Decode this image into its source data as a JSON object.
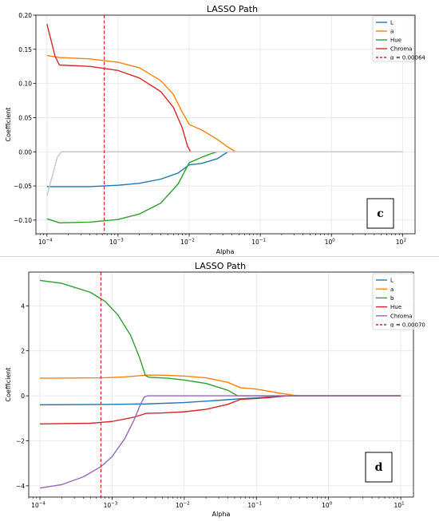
{
  "chart_data": [
    {
      "type": "line",
      "title": "LASSO Path",
      "xlabel": "Alpha",
      "ylabel": "Coefficient",
      "xscale": "log",
      "xlim": [
        7e-05,
        15
      ],
      "ylim": [
        -0.12,
        0.2
      ],
      "xticks": [
        {
          "value": 0.0001,
          "base": "10",
          "exp": "−4"
        },
        {
          "value": 0.001,
          "base": "10",
          "exp": "−3"
        },
        {
          "value": 0.01,
          "base": "10",
          "exp": "−2"
        },
        {
          "value": 0.1,
          "base": "10",
          "exp": "−1"
        },
        {
          "value": 1,
          "base": "10",
          "exp": "0"
        },
        {
          "value": 10,
          "base": "10",
          "exp": "1"
        }
      ],
      "yticks": [
        {
          "value": 0.2,
          "label": "0.20"
        },
        {
          "value": 0.15,
          "label": "0.15"
        },
        {
          "value": 0.1,
          "label": "0.10"
        },
        {
          "value": 0.05,
          "label": "0.05"
        },
        {
          "value": 0.0,
          "label": "0.00"
        },
        {
          "value": -0.05,
          "label": "−0.05"
        },
        {
          "value": -0.1,
          "label": "−0.10"
        }
      ],
      "grid": true,
      "legend_position": "top-right",
      "panel_label": "c",
      "series": [
        {
          "name": "L",
          "color": "#1f77b4",
          "x": [
            0.0001,
            0.0002,
            0.0004,
            0.001,
            0.002,
            0.004,
            0.007,
            0.01,
            0.015,
            0.025,
            0.035,
            0.05,
            0.1,
            1,
            10
          ],
          "y": [
            -0.051,
            -0.051,
            -0.051,
            -0.049,
            -0.046,
            -0.04,
            -0.031,
            -0.019,
            -0.017,
            -0.01,
            0.0,
            0.0,
            0.0,
            0.0,
            0.0
          ]
        },
        {
          "name": "a",
          "color": "#ff7f0e",
          "x": [
            0.0001,
            0.00015,
            0.0004,
            0.001,
            0.002,
            0.004,
            0.006,
            0.008,
            0.01,
            0.015,
            0.025,
            0.035,
            0.045,
            0.05,
            0.1,
            1,
            10
          ],
          "y": [
            0.141,
            0.138,
            0.136,
            0.131,
            0.123,
            0.104,
            0.084,
            0.058,
            0.04,
            0.032,
            0.018,
            0.007,
            0.0,
            0.0,
            0.0,
            0.0,
            0.0
          ]
        },
        {
          "name": "Hue",
          "color": "#2ca02c",
          "x": [
            0.0001,
            0.00015,
            0.0004,
            0.001,
            0.002,
            0.004,
            0.007,
            0.01,
            0.015,
            0.02,
            0.025,
            0.03,
            0.1,
            1,
            10
          ],
          "y": [
            -0.098,
            -0.104,
            -0.103,
            -0.099,
            -0.091,
            -0.075,
            -0.047,
            -0.016,
            -0.008,
            -0.003,
            0.0,
            0.0,
            0.0,
            0.0,
            0.0
          ]
        },
        {
          "name": "Chroma",
          "color": "#d62728",
          "x": [
            0.0001,
            0.00013,
            0.00015,
            0.0004,
            0.001,
            0.002,
            0.004,
            0.006,
            0.008,
            0.0095,
            0.0105,
            0.02,
            0.1,
            1,
            10
          ],
          "y": [
            0.187,
            0.14,
            0.127,
            0.125,
            0.119,
            0.108,
            0.088,
            0.065,
            0.035,
            0.008,
            0.0,
            0.0,
            0.0,
            0.0,
            0.0
          ]
        },
        {
          "name": "",
          "color": "#c7c7c7",
          "x": [
            0.0001,
            0.00012,
            0.00014,
            0.00016,
            0.001,
            0.1,
            1,
            10
          ],
          "y": [
            -0.064,
            -0.034,
            -0.008,
            0.0,
            0.0,
            0.0,
            0.0,
            0.0
          ]
        }
      ],
      "vline": {
        "name": "α = 0.00064",
        "x": 0.00064,
        "color": "#d62728"
      }
    },
    {
      "type": "line",
      "title": "LASSO Path",
      "xlabel": "Alpha",
      "ylabel": "Coefficient",
      "xscale": "log",
      "xlim": [
        7e-05,
        15
      ],
      "ylim": [
        -4.5,
        5.5
      ],
      "xticks": [
        {
          "value": 0.0001,
          "base": "10",
          "exp": "−4"
        },
        {
          "value": 0.001,
          "base": "10",
          "exp": "−3"
        },
        {
          "value": 0.01,
          "base": "10",
          "exp": "−2"
        },
        {
          "value": 0.1,
          "base": "10",
          "exp": "−1"
        },
        {
          "value": 1,
          "base": "10",
          "exp": "0"
        },
        {
          "value": 10,
          "base": "10",
          "exp": "1"
        }
      ],
      "yticks": [
        {
          "value": 4,
          "label": "4"
        },
        {
          "value": 2,
          "label": "2"
        },
        {
          "value": 0,
          "label": "0"
        },
        {
          "value": -2,
          "label": "−2"
        },
        {
          "value": -4,
          "label": "−4"
        }
      ],
      "grid": true,
      "legend_position": "top-right",
      "panel_label": "d",
      "series": [
        {
          "name": "L",
          "color": "#1f77b4",
          "x": [
            0.0001,
            0.001,
            0.003,
            0.01,
            0.03,
            0.06,
            0.1,
            0.2,
            0.3,
            1,
            10
          ],
          "y": [
            -0.4,
            -0.38,
            -0.36,
            -0.3,
            -0.2,
            -0.13,
            -0.09,
            -0.02,
            0.0,
            0.0,
            0.0
          ]
        },
        {
          "name": "a",
          "color": "#ff7f0e",
          "x": [
            0.0001,
            0.0007,
            0.0015,
            0.003,
            0.005,
            0.01,
            0.02,
            0.04,
            0.06,
            0.1,
            0.2,
            0.35,
            0.4,
            1,
            10
          ],
          "y": [
            0.78,
            0.8,
            0.84,
            0.92,
            0.92,
            0.88,
            0.8,
            0.6,
            0.36,
            0.3,
            0.13,
            0.01,
            0.0,
            0.0,
            0.0
          ]
        },
        {
          "name": "b",
          "color": "#2ca02c",
          "x": [
            0.0001,
            0.0002,
            0.0005,
            0.0008,
            0.0012,
            0.0018,
            0.0024,
            0.0029,
            0.0033,
            0.006,
            0.01,
            0.02,
            0.04,
            0.055,
            0.1,
            1,
            10
          ],
          "y": [
            5.13,
            5.0,
            4.6,
            4.2,
            3.6,
            2.7,
            1.7,
            0.9,
            0.82,
            0.78,
            0.7,
            0.55,
            0.25,
            0.0,
            0.0,
            0.0,
            0.0
          ]
        },
        {
          "name": "Hue",
          "color": "#d62728",
          "x": [
            0.0001,
            0.0005,
            0.001,
            0.002,
            0.003,
            0.005,
            0.01,
            0.02,
            0.04,
            0.06,
            0.1,
            0.15,
            0.25,
            0.3,
            1,
            10
          ],
          "y": [
            -1.25,
            -1.22,
            -1.14,
            -0.95,
            -0.78,
            -0.76,
            -0.71,
            -0.6,
            -0.38,
            -0.16,
            -0.12,
            -0.08,
            -0.01,
            0.0,
            0.0,
            0.0
          ]
        },
        {
          "name": "Chroma",
          "color": "#9467bd",
          "x": [
            0.0001,
            0.0002,
            0.0004,
            0.0007,
            0.001,
            0.0015,
            0.002,
            0.0025,
            0.0028,
            0.0031,
            0.004,
            0.1,
            1,
            10
          ],
          "y": [
            -4.1,
            -3.95,
            -3.6,
            -3.15,
            -2.7,
            -1.9,
            -1.1,
            -0.35,
            -0.05,
            0.0,
            0.0,
            0.0,
            0.0,
            0.0
          ]
        }
      ],
      "vline": {
        "name": "α = 0.00070",
        "x": 0.0007,
        "color": "#d62728"
      }
    }
  ]
}
